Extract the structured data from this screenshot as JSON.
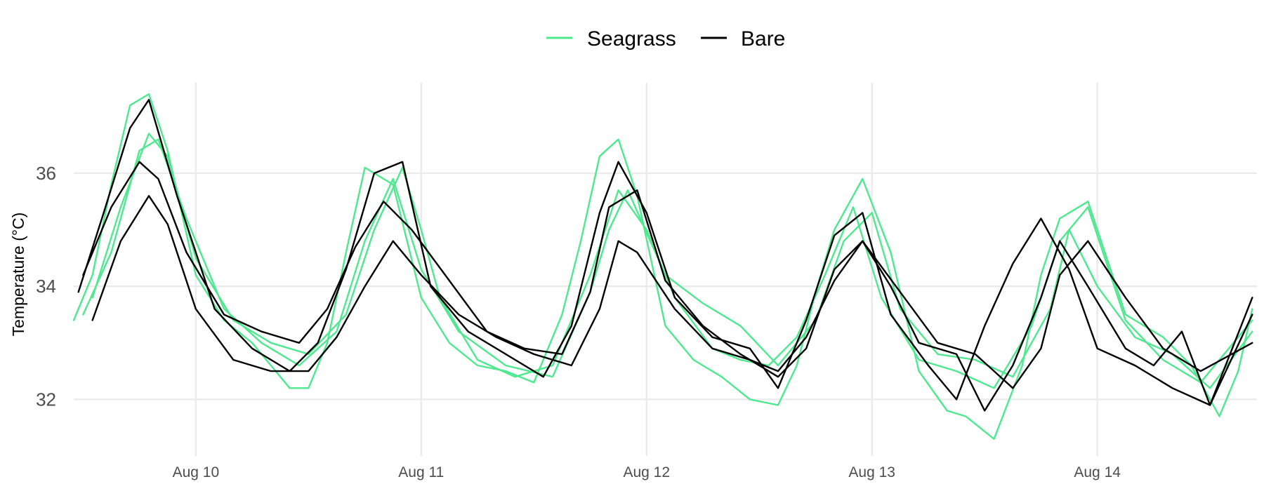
{
  "chart_data": {
    "type": "line",
    "title": "",
    "xlabel": "",
    "ylabel": "Temperature (°C)",
    "x_type": "datetime",
    "x_range": [
      "2023-08-09T11:00",
      "2023-08-14T17:00"
    ],
    "ylim": [
      31.0,
      37.6
    ],
    "y_ticks": [
      32,
      34,
      36
    ],
    "y_tick_labels": [
      "32",
      "34",
      "36"
    ],
    "x_ticks": [
      "2023-08-10T00:00",
      "2023-08-11T00:00",
      "2023-08-12T00:00",
      "2023-08-13T00:00",
      "2023-08-14T00:00"
    ],
    "x_tick_labels": [
      "Aug 10",
      "Aug 11",
      "Aug 12",
      "Aug 13",
      "Aug 14"
    ],
    "grid": true,
    "legend_position": "top",
    "legend": [
      {
        "name": "Seagrass",
        "color": "#4ee88f"
      },
      {
        "name": "Bare",
        "color": "#000000"
      }
    ],
    "series": [
      {
        "group": "Seagrass",
        "color": "#4ee88f",
        "x": [
          "2023-08-09T11:00",
          "2023-08-09T13:00",
          "2023-08-09T15:00",
          "2023-08-09T17:00",
          "2023-08-09T19:00",
          "2023-08-09T21:00",
          "2023-08-10T00:00",
          "2023-08-10T03:00",
          "2023-08-10T06:00",
          "2023-08-10T08:00",
          "2023-08-10T10:00",
          "2023-08-10T12:00",
          "2023-08-10T14:00",
          "2023-08-10T16:00",
          "2023-08-10T18:00",
          "2023-08-10T21:00",
          "2023-08-11T00:00",
          "2023-08-11T03:00",
          "2023-08-11T06:00",
          "2023-08-11T09:00",
          "2023-08-11T12:00",
          "2023-08-11T15:00",
          "2023-08-11T17:00",
          "2023-08-11T19:00",
          "2023-08-11T21:00",
          "2023-08-11T23:00",
          "2023-08-12T02:00",
          "2023-08-12T05:00",
          "2023-08-12T08:00",
          "2023-08-12T11:00",
          "2023-08-12T14:00",
          "2023-08-12T16:00",
          "2023-08-12T18:00",
          "2023-08-12T20:00",
          "2023-08-12T23:00",
          "2023-08-13T02:00",
          "2023-08-13T05:00",
          "2023-08-13T08:00",
          "2023-08-13T10:00",
          "2023-08-13T13:00",
          "2023-08-13T16:00",
          "2023-08-13T18:00",
          "2023-08-13T20:00",
          "2023-08-13T23:00",
          "2023-08-14T03:00",
          "2023-08-14T07:00",
          "2023-08-14T10:00",
          "2023-08-14T13:00",
          "2023-08-14T15:00",
          "2023-08-14T16:30"
        ],
        "y": [
          33.4,
          34.2,
          35.8,
          37.2,
          37.4,
          36.4,
          34.2,
          33.4,
          33.0,
          32.6,
          32.2,
          32.2,
          33.0,
          34.6,
          36.1,
          35.8,
          33.8,
          33.0,
          32.6,
          32.5,
          32.3,
          33.5,
          34.8,
          36.3,
          36.6,
          35.6,
          33.3,
          32.7,
          32.4,
          32.0,
          31.9,
          32.6,
          33.9,
          35.0,
          35.9,
          34.6,
          32.5,
          31.8,
          31.7,
          31.3,
          32.6,
          34.2,
          35.2,
          35.5,
          33.5,
          33.1,
          32.6,
          31.7,
          32.5,
          33.6
        ]
      },
      {
        "group": "Seagrass",
        "color": "#4ee88f",
        "x": [
          "2023-08-09T12:00",
          "2023-08-09T15:00",
          "2023-08-09T18:00",
          "2023-08-09T20:00",
          "2023-08-09T23:00",
          "2023-08-10T03:00",
          "2023-08-10T07:00",
          "2023-08-10T11:00",
          "2023-08-10T15:00",
          "2023-08-10T18:00",
          "2023-08-10T21:00",
          "2023-08-11T00:00",
          "2023-08-11T04:00",
          "2023-08-11T09:00",
          "2023-08-11T14:00",
          "2023-08-11T18:00",
          "2023-08-11T20:00",
          "2023-08-11T22:00",
          "2023-08-12T02:00",
          "2023-08-12T06:00",
          "2023-08-12T10:00",
          "2023-08-12T14:00",
          "2023-08-12T18:00",
          "2023-08-12T21:00",
          "2023-08-13T00:00",
          "2023-08-13T03:00",
          "2023-08-13T07:00",
          "2023-08-13T11:00",
          "2023-08-13T15:00",
          "2023-08-13T19:00",
          "2023-08-13T21:00",
          "2023-08-14T00:00",
          "2023-08-14T04:00",
          "2023-08-14T08:00",
          "2023-08-14T12:00",
          "2023-08-14T16:30"
        ],
        "y": [
          33.5,
          34.6,
          36.4,
          36.6,
          35.2,
          33.6,
          33.0,
          32.6,
          33.2,
          34.8,
          35.9,
          34.3,
          33.2,
          32.6,
          32.4,
          33.9,
          35.0,
          35.7,
          34.2,
          33.7,
          33.3,
          32.6,
          33.4,
          34.8,
          35.3,
          33.6,
          32.8,
          32.7,
          32.4,
          33.6,
          35.0,
          34.0,
          33.1,
          32.8,
          32.2,
          33.2
        ]
      },
      {
        "group": "Seagrass",
        "color": "#4ee88f",
        "x": [
          "2023-08-09T13:00",
          "2023-08-09T16:00",
          "2023-08-09T19:00",
          "2023-08-09T21:00",
          "2023-08-10T00:00",
          "2023-08-10T04:00",
          "2023-08-10T08:00",
          "2023-08-10T12:00",
          "2023-08-10T16:00",
          "2023-08-10T19:00",
          "2023-08-10T22:00",
          "2023-08-11T00:00",
          "2023-08-11T02:00",
          "2023-08-11T06:00",
          "2023-08-11T10:00",
          "2023-08-11T14:00",
          "2023-08-11T18:00",
          "2023-08-11T21:00",
          "2023-08-12T00:00",
          "2023-08-12T03:00",
          "2023-08-12T07:00",
          "2023-08-12T10:00",
          "2023-08-12T13:00",
          "2023-08-12T16:00",
          "2023-08-12T19:00",
          "2023-08-12T22:00",
          "2023-08-13T01:00",
          "2023-08-13T05:00",
          "2023-08-13T09:00",
          "2023-08-13T13:00",
          "2023-08-13T17:00",
          "2023-08-13T20:00",
          "2023-08-13T23:00",
          "2023-08-14T03:00",
          "2023-08-14T07:00",
          "2023-08-14T11:00",
          "2023-08-14T16:30"
        ],
        "y": [
          33.8,
          35.4,
          36.7,
          36.3,
          34.5,
          33.4,
          33.0,
          32.8,
          33.5,
          35.0,
          36.1,
          35.0,
          33.8,
          32.7,
          32.4,
          32.6,
          34.2,
          35.7,
          35.0,
          33.8,
          32.9,
          32.7,
          32.6,
          33.1,
          34.2,
          35.4,
          33.8,
          32.7,
          32.5,
          32.2,
          33.3,
          34.8,
          35.4,
          33.4,
          32.7,
          32.3,
          33.4
        ]
      },
      {
        "group": "Bare",
        "color": "#000000",
        "x": [
          "2023-08-09T11:30",
          "2023-08-09T14:00",
          "2023-08-09T17:00",
          "2023-08-09T19:00",
          "2023-08-09T22:00",
          "2023-08-10T02:00",
          "2023-08-10T06:00",
          "2023-08-10T10:00",
          "2023-08-10T13:00",
          "2023-08-10T16:00",
          "2023-08-10T19:00",
          "2023-08-10T22:00",
          "2023-08-11T01:00",
          "2023-08-11T05:00",
          "2023-08-11T09:00",
          "2023-08-11T13:00",
          "2023-08-11T16:00",
          "2023-08-11T19:00",
          "2023-08-11T21:00",
          "2023-08-12T00:00",
          "2023-08-12T03:00",
          "2023-08-12T07:00",
          "2023-08-12T11:00",
          "2023-08-12T14:00",
          "2023-08-12T17:00",
          "2023-08-12T20:00",
          "2023-08-12T23:00",
          "2023-08-13T02:00",
          "2023-08-13T06:00",
          "2023-08-13T09:00",
          "2023-08-13T12:00",
          "2023-08-13T15:00",
          "2023-08-13T18:00",
          "2023-08-13T21:00",
          "2023-08-14T00:00",
          "2023-08-14T04:00",
          "2023-08-14T08:00",
          "2023-08-14T12:00",
          "2023-08-14T16:30"
        ],
        "y": [
          33.9,
          35.2,
          36.8,
          37.3,
          35.6,
          33.6,
          32.9,
          32.5,
          33.0,
          34.3,
          36.0,
          36.2,
          34.0,
          33.2,
          32.8,
          32.4,
          33.3,
          35.3,
          36.2,
          35.3,
          33.8,
          33.1,
          32.9,
          32.2,
          33.4,
          34.9,
          35.3,
          33.5,
          32.6,
          32.0,
          33.3,
          34.4,
          35.2,
          34.3,
          32.9,
          32.6,
          32.2,
          31.9,
          33.8
        ]
      },
      {
        "group": "Bare",
        "color": "#000000",
        "x": [
          "2023-08-09T12:00",
          "2023-08-09T15:00",
          "2023-08-09T18:00",
          "2023-08-09T20:00",
          "2023-08-09T23:00",
          "2023-08-10T03:00",
          "2023-08-10T07:00",
          "2023-08-10T11:00",
          "2023-08-10T14:00",
          "2023-08-10T17:00",
          "2023-08-10T20:00",
          "2023-08-10T23:00",
          "2023-08-11T03:00",
          "2023-08-11T07:00",
          "2023-08-11T11:00",
          "2023-08-11T15:00",
          "2023-08-11T18:00",
          "2023-08-11T20:00",
          "2023-08-11T23:00",
          "2023-08-12T02:00",
          "2023-08-12T06:00",
          "2023-08-12T10:00",
          "2023-08-12T14:00",
          "2023-08-12T17:00",
          "2023-08-12T20:00",
          "2023-08-12T23:00",
          "2023-08-13T03:00",
          "2023-08-13T07:00",
          "2023-08-13T11:00",
          "2023-08-13T15:00",
          "2023-08-13T18:00",
          "2023-08-13T20:00",
          "2023-08-13T23:00",
          "2023-08-14T03:00",
          "2023-08-14T07:00",
          "2023-08-14T11:00",
          "2023-08-14T16:30"
        ],
        "y": [
          34.2,
          35.4,
          36.2,
          35.9,
          34.6,
          33.5,
          33.2,
          33.0,
          33.6,
          34.7,
          35.5,
          35.0,
          34.1,
          33.2,
          32.9,
          32.8,
          33.9,
          35.4,
          35.7,
          34.1,
          33.3,
          32.8,
          32.4,
          32.9,
          34.3,
          34.8,
          33.9,
          33.0,
          32.8,
          32.2,
          32.9,
          34.2,
          34.8,
          33.8,
          32.9,
          32.5,
          33.0
        ]
      },
      {
        "group": "Bare",
        "color": "#000000",
        "x": [
          "2023-08-09T13:00",
          "2023-08-09T16:00",
          "2023-08-09T19:00",
          "2023-08-09T21:00",
          "2023-08-10T00:00",
          "2023-08-10T04:00",
          "2023-08-10T08:00",
          "2023-08-10T12:00",
          "2023-08-10T15:00",
          "2023-08-10T18:00",
          "2023-08-10T21:00",
          "2023-08-11T00:00",
          "2023-08-11T04:00",
          "2023-08-11T08:00",
          "2023-08-11T12:00",
          "2023-08-11T16:00",
          "2023-08-11T19:00",
          "2023-08-11T21:00",
          "2023-08-11T23:00",
          "2023-08-12T03:00",
          "2023-08-12T07:00",
          "2023-08-12T11:00",
          "2023-08-12T14:00",
          "2023-08-12T17:00",
          "2023-08-12T20:00",
          "2023-08-12T23:00",
          "2023-08-13T02:00",
          "2023-08-13T05:00",
          "2023-08-13T09:00",
          "2023-08-13T12:00",
          "2023-08-13T15:00",
          "2023-08-13T18:00",
          "2023-08-13T20:00",
          "2023-08-13T23:00",
          "2023-08-14T03:00",
          "2023-08-14T06:00",
          "2023-08-14T09:00",
          "2023-08-14T12:00",
          "2023-08-14T16:30"
        ],
        "y": [
          33.4,
          34.8,
          35.6,
          35.1,
          33.6,
          32.7,
          32.5,
          32.5,
          33.1,
          34.0,
          34.8,
          34.2,
          33.5,
          33.1,
          32.8,
          32.6,
          33.6,
          34.8,
          34.6,
          33.6,
          32.9,
          32.7,
          32.5,
          33.1,
          34.1,
          34.8,
          34.0,
          33.0,
          32.8,
          31.8,
          32.6,
          33.8,
          34.8,
          34.0,
          32.9,
          32.6,
          33.2,
          31.9,
          33.5
        ]
      }
    ]
  }
}
